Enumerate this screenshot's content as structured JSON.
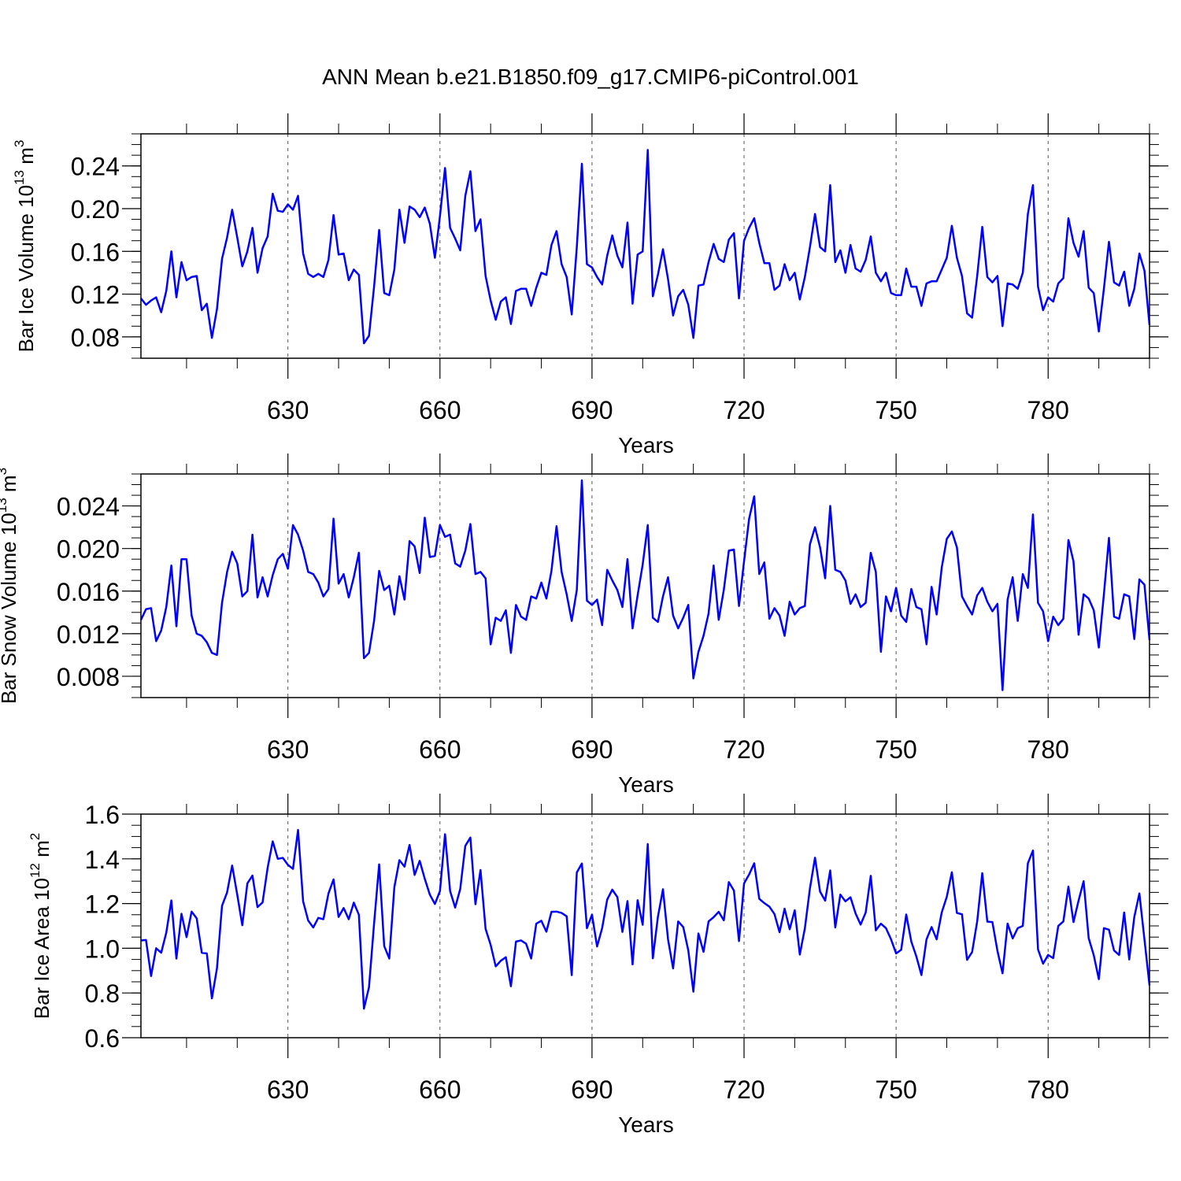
{
  "title": "ANN Mean b.e21.B1850.f09_g17.CMIP6-piControl.001",
  "colors": {
    "line": "#0000ff",
    "axis": "#000000",
    "grid": "#555555"
  },
  "chart_data": [
    {
      "type": "line",
      "name": "ice-volume",
      "ylabel": {
        "text": "Bar Ice Volume 10",
        "exponent": "13",
        "unit": " m",
        "unit_exponent": "3"
      },
      "xlabel": "Years",
      "xlim": [
        601,
        800
      ],
      "ylim": [
        0.06,
        0.27
      ],
      "xticks": [
        630,
        660,
        690,
        720,
        750,
        780
      ],
      "xtick_labels": [
        "630",
        "660",
        "690",
        "720",
        "750",
        "780"
      ],
      "yticks": [
        0.08,
        0.12,
        0.16,
        0.2,
        0.24
      ],
      "ytick_labels": [
        "0.08",
        "0.12",
        "0.16",
        "0.20",
        "0.24"
      ],
      "x_start": 601,
      "values": [
        0.116,
        0.11,
        0.114,
        0.117,
        0.103,
        0.123,
        0.16,
        0.117,
        0.15,
        0.133,
        0.136,
        0.137,
        0.105,
        0.111,
        0.079,
        0.106,
        0.153,
        0.173,
        0.199,
        0.173,
        0.146,
        0.16,
        0.182,
        0.14,
        0.163,
        0.174,
        0.214,
        0.198,
        0.197,
        0.204,
        0.199,
        0.212,
        0.158,
        0.139,
        0.136,
        0.139,
        0.136,
        0.152,
        0.194,
        0.157,
        0.158,
        0.133,
        0.143,
        0.138,
        0.074,
        0.081,
        0.127,
        0.18,
        0.121,
        0.119,
        0.143,
        0.199,
        0.168,
        0.202,
        0.199,
        0.192,
        0.201,
        0.186,
        0.154,
        0.193,
        0.238,
        0.182,
        0.172,
        0.161,
        0.212,
        0.235,
        0.179,
        0.19,
        0.137,
        0.114,
        0.096,
        0.113,
        0.117,
        0.092,
        0.123,
        0.125,
        0.125,
        0.109,
        0.126,
        0.14,
        0.138,
        0.166,
        0.179,
        0.148,
        0.136,
        0.101,
        0.164,
        0.242,
        0.148,
        0.145,
        0.136,
        0.129,
        0.156,
        0.175,
        0.156,
        0.145,
        0.187,
        0.111,
        0.157,
        0.16,
        0.255,
        0.118,
        0.138,
        0.162,
        0.134,
        0.1,
        0.118,
        0.124,
        0.11,
        0.079,
        0.128,
        0.129,
        0.15,
        0.167,
        0.153,
        0.15,
        0.171,
        0.177,
        0.116,
        0.17,
        0.182,
        0.191,
        0.168,
        0.149,
        0.149,
        0.124,
        0.128,
        0.148,
        0.133,
        0.14,
        0.115,
        0.136,
        0.164,
        0.195,
        0.164,
        0.16,
        0.222,
        0.15,
        0.161,
        0.14,
        0.166,
        0.144,
        0.141,
        0.152,
        0.174,
        0.14,
        0.132,
        0.14,
        0.121,
        0.119,
        0.119,
        0.144,
        0.127,
        0.127,
        0.109,
        0.13,
        0.132,
        0.132,
        0.143,
        0.154,
        0.184,
        0.154,
        0.137,
        0.102,
        0.098,
        0.137,
        0.183,
        0.136,
        0.131,
        0.137,
        0.09,
        0.13,
        0.129,
        0.125,
        0.14,
        0.195,
        0.222,
        0.127,
        0.105,
        0.117,
        0.113,
        0.13,
        0.135,
        0.191,
        0.168,
        0.155,
        0.179,
        0.126,
        0.121,
        0.085,
        0.125,
        0.169,
        0.131,
        0.128,
        0.141,
        0.109,
        0.125,
        0.158,
        0.142,
        0.091
      ]
    },
    {
      "type": "line",
      "name": "snow-volume",
      "ylabel": {
        "text": "Bar Snow Volume 10",
        "exponent": "13",
        "unit": " m",
        "unit_exponent": "3"
      },
      "xlabel": "Years",
      "xlim": [
        601,
        800
      ],
      "ylim": [
        0.006,
        0.027
      ],
      "xticks": [
        630,
        660,
        690,
        720,
        750,
        780
      ],
      "xtick_labels": [
        "630",
        "660",
        "690",
        "720",
        "750",
        "780"
      ],
      "yticks": [
        0.008,
        0.012,
        0.016,
        0.02,
        0.024
      ],
      "ytick_labels": [
        "0.008",
        "0.012",
        "0.016",
        "0.020",
        "0.024"
      ],
      "x_start": 601,
      "values": [
        0.0133,
        0.0143,
        0.0144,
        0.0113,
        0.0123,
        0.0145,
        0.0184,
        0.0127,
        0.019,
        0.019,
        0.0137,
        0.012,
        0.0118,
        0.0112,
        0.0102,
        0.01,
        0.0149,
        0.0178,
        0.0197,
        0.0186,
        0.0155,
        0.016,
        0.0213,
        0.0154,
        0.0173,
        0.0155,
        0.0175,
        0.019,
        0.0195,
        0.0181,
        0.0222,
        0.0213,
        0.0198,
        0.0178,
        0.0176,
        0.0168,
        0.0155,
        0.0162,
        0.0228,
        0.0167,
        0.0176,
        0.0154,
        0.0173,
        0.0196,
        0.0097,
        0.0102,
        0.0132,
        0.0179,
        0.0161,
        0.0165,
        0.0138,
        0.0174,
        0.0152,
        0.0207,
        0.0202,
        0.0177,
        0.0229,
        0.0192,
        0.0193,
        0.0222,
        0.0211,
        0.0213,
        0.0186,
        0.0183,
        0.0198,
        0.0223,
        0.0176,
        0.0178,
        0.0172,
        0.011,
        0.0135,
        0.0132,
        0.0142,
        0.0102,
        0.0147,
        0.0136,
        0.0133,
        0.0155,
        0.0153,
        0.0168,
        0.0153,
        0.0179,
        0.0221,
        0.0178,
        0.0157,
        0.0132,
        0.0161,
        0.0264,
        0.0151,
        0.0147,
        0.0152,
        0.0128,
        0.018,
        0.017,
        0.0161,
        0.0145,
        0.019,
        0.0125,
        0.0156,
        0.0185,
        0.0222,
        0.0135,
        0.0131,
        0.0155,
        0.0173,
        0.0137,
        0.0125,
        0.0135,
        0.0147,
        0.0078,
        0.0103,
        0.0118,
        0.0139,
        0.0184,
        0.0133,
        0.0161,
        0.0198,
        0.0199,
        0.0146,
        0.0188,
        0.0228,
        0.0249,
        0.0176,
        0.0187,
        0.0134,
        0.0144,
        0.0137,
        0.0118,
        0.015,
        0.0138,
        0.0144,
        0.0146,
        0.0204,
        0.022,
        0.0201,
        0.0172,
        0.024,
        0.018,
        0.0178,
        0.017,
        0.0148,
        0.0157,
        0.0145,
        0.0149,
        0.0196,
        0.0178,
        0.0103,
        0.0155,
        0.0141,
        0.0163,
        0.0137,
        0.0131,
        0.0162,
        0.0145,
        0.0143,
        0.011,
        0.0164,
        0.0138,
        0.0182,
        0.0209,
        0.0216,
        0.0201,
        0.0155,
        0.0146,
        0.0138,
        0.0156,
        0.0163,
        0.015,
        0.0141,
        0.0148,
        0.0067,
        0.0152,
        0.0173,
        0.0132,
        0.0176,
        0.0163,
        0.0232,
        0.0149,
        0.0141,
        0.0113,
        0.0136,
        0.0128,
        0.0134,
        0.0208,
        0.0188,
        0.0119,
        0.0157,
        0.0153,
        0.0142,
        0.0107,
        0.0157,
        0.021,
        0.0136,
        0.0134,
        0.0157,
        0.0155,
        0.0115,
        0.0171,
        0.0166,
        0.0114
      ]
    },
    {
      "type": "line",
      "name": "ice-area",
      "ylabel": {
        "text": "Bar Ice Area 10",
        "exponent": "12",
        "unit": " m",
        "unit_exponent": "2"
      },
      "xlabel": "Years",
      "xlim": [
        601,
        800
      ],
      "ylim": [
        0.6,
        1.6
      ],
      "xticks": [
        630,
        660,
        690,
        720,
        750,
        780
      ],
      "xtick_labels": [
        "630",
        "660",
        "690",
        "720",
        "750",
        "780"
      ],
      "yticks": [
        0.6,
        0.8,
        1.0,
        1.2,
        1.4,
        1.6
      ],
      "ytick_labels": [
        "0.6",
        "0.8",
        "1.0",
        "1.2",
        "1.4",
        "1.6"
      ],
      "x_start": 601,
      "values": [
        1.035,
        1.037,
        0.876,
        1.0,
        0.98,
        1.07,
        1.214,
        0.954,
        1.154,
        1.05,
        1.164,
        1.134,
        0.98,
        0.977,
        0.776,
        0.91,
        1.19,
        1.25,
        1.37,
        1.24,
        1.103,
        1.29,
        1.325,
        1.184,
        1.205,
        1.36,
        1.478,
        1.4,
        1.404,
        1.373,
        1.355,
        1.529,
        1.21,
        1.124,
        1.093,
        1.136,
        1.13,
        1.245,
        1.308,
        1.14,
        1.18,
        1.13,
        1.204,
        1.15,
        0.73,
        0.826,
        1.11,
        1.375,
        1.01,
        0.954,
        1.273,
        1.394,
        1.365,
        1.462,
        1.328,
        1.391,
        1.311,
        1.24,
        1.198,
        1.256,
        1.51,
        1.256,
        1.182,
        1.265,
        1.458,
        1.495,
        1.197,
        1.35,
        1.087,
        1.015,
        0.919,
        0.944,
        0.96,
        0.83,
        1.03,
        1.035,
        1.02,
        0.954,
        1.11,
        1.123,
        1.074,
        1.163,
        1.164,
        1.158,
        1.143,
        0.88,
        1.339,
        1.379,
        1.09,
        1.15,
        1.008,
        1.09,
        1.218,
        1.262,
        1.229,
        1.073,
        1.211,
        0.928,
        1.215,
        1.105,
        1.466,
        0.955,
        1.14,
        1.264,
        1.04,
        0.91,
        1.12,
        1.095,
        0.99,
        0.806,
        1.066,
        0.984,
        1.12,
        1.139,
        1.163,
        1.125,
        1.296,
        1.258,
        1.032,
        1.29,
        1.33,
        1.38,
        1.221,
        1.202,
        1.186,
        1.153,
        1.072,
        1.177,
        1.085,
        1.17,
        0.972,
        1.089,
        1.268,
        1.405,
        1.253,
        1.213,
        1.348,
        1.093,
        1.24,
        1.21,
        1.228,
        1.156,
        1.106,
        1.16,
        1.324,
        1.08,
        1.11,
        1.09,
        1.04,
        0.977,
        0.993,
        1.151,
        1.03,
        0.963,
        0.88,
        1.04,
        1.095,
        1.04,
        1.16,
        1.23,
        1.34,
        1.158,
        1.152,
        0.948,
        0.983,
        1.12,
        1.336,
        1.119,
        1.117,
        0.988,
        0.888,
        1.11,
        1.044,
        1.09,
        1.1,
        1.38,
        1.437,
        0.995,
        0.931,
        0.97,
        0.956,
        1.1,
        1.12,
        1.276,
        1.117,
        1.213,
        1.3,
        1.045,
        0.969,
        0.862,
        1.09,
        1.083,
        0.99,
        0.97,
        1.16,
        0.95,
        1.14,
        1.245,
        1.04,
        0.834
      ]
    }
  ]
}
